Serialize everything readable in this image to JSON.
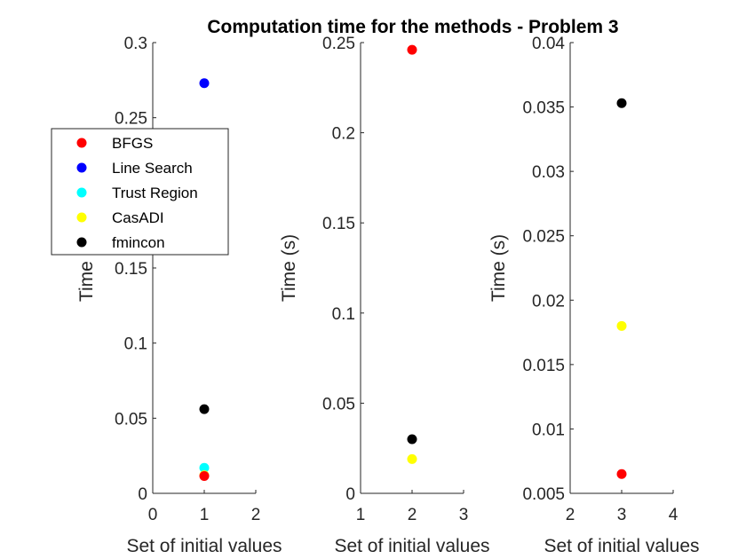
{
  "title": "Computation time for the methods - Problem 3",
  "legend": {
    "placement": "left",
    "entries": [
      {
        "label": "BFGS",
        "color": "#ff0000"
      },
      {
        "label": "Line Search",
        "color": "#0000ff"
      },
      {
        "label": "Trust Region",
        "color": "#00ffff"
      },
      {
        "label": "CasADI",
        "color": "#ffff00"
      },
      {
        "label": "fmincon",
        "color": "#000000"
      }
    ]
  },
  "chart_data": [
    {
      "type": "scatter",
      "xlabel": "Set of initial values",
      "ylabel": "Time (s)",
      "xlim": [
        0,
        2
      ],
      "ylim": [
        0,
        0.3
      ],
      "xticks": [
        "0",
        "1",
        "2"
      ],
      "yticks": [
        "0",
        "0.05",
        "0.1",
        "0.15",
        "0.2",
        "0.25",
        "0.3"
      ],
      "series": [
        {
          "name": "Line Search",
          "color": "#0000ff",
          "points": [
            {
              "x": 1,
              "y": 0.273
            }
          ]
        },
        {
          "name": "fmincon",
          "color": "#000000",
          "points": [
            {
              "x": 1,
              "y": 0.056
            }
          ]
        },
        {
          "name": "Trust Region",
          "color": "#00ffff",
          "points": [
            {
              "x": 1,
              "y": 0.017
            }
          ]
        },
        {
          "name": "CasADI",
          "color": "#ffff00",
          "points": [
            {
              "x": 1,
              "y": 0.012
            }
          ]
        },
        {
          "name": "BFGS",
          "color": "#ff0000",
          "points": [
            {
              "x": 1,
              "y": 0.0115
            }
          ]
        }
      ]
    },
    {
      "type": "scatter",
      "xlabel": "Set of initial values",
      "ylabel": "Time (s)",
      "xlim": [
        1,
        3
      ],
      "ylim": [
        0,
        0.25
      ],
      "xticks": [
        "1",
        "2",
        "3"
      ],
      "yticks": [
        "0",
        "0.05",
        "0.1",
        "0.15",
        "0.2",
        "0.25"
      ],
      "series": [
        {
          "name": "BFGS",
          "color": "#ff0000",
          "points": [
            {
              "x": 2,
              "y": 0.246
            }
          ]
        },
        {
          "name": "fmincon",
          "color": "#000000",
          "points": [
            {
              "x": 2,
              "y": 0.03
            }
          ]
        },
        {
          "name": "CasADI",
          "color": "#ffff00",
          "points": [
            {
              "x": 2,
              "y": 0.019
            }
          ]
        }
      ]
    },
    {
      "type": "scatter",
      "xlabel": "Set of initial values",
      "ylabel": "Time (s)",
      "xlim": [
        2,
        4
      ],
      "ylim": [
        0.005,
        0.04
      ],
      "xticks": [
        "2",
        "3",
        "4"
      ],
      "yticks": [
        "0.005",
        "0.01",
        "0.015",
        "0.02",
        "0.025",
        "0.03",
        "0.035",
        "0.04"
      ],
      "series": [
        {
          "name": "fmincon",
          "color": "#000000",
          "points": [
            {
              "x": 3,
              "y": 0.0353
            }
          ]
        },
        {
          "name": "CasADI",
          "color": "#ffff00",
          "points": [
            {
              "x": 3,
              "y": 0.018
            }
          ]
        },
        {
          "name": "BFGS",
          "color": "#ff0000",
          "points": [
            {
              "x": 3,
              "y": 0.0065
            }
          ]
        }
      ]
    }
  ]
}
